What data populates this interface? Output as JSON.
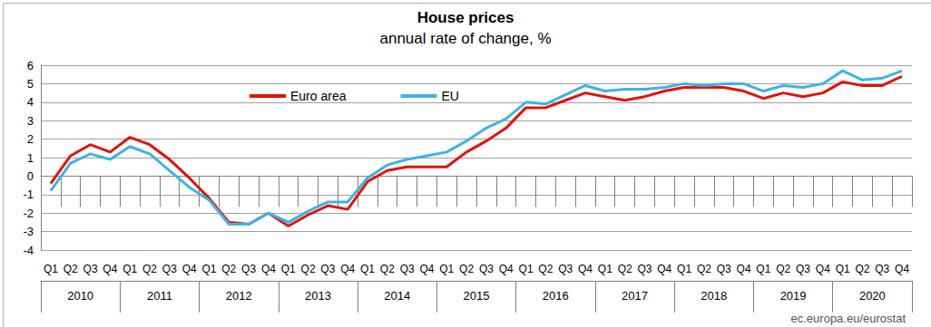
{
  "chart_data": {
    "type": "line",
    "title": "House prices",
    "subtitle": "annual rate of change, %",
    "annotations": [
      "ec.europa.eu/eurostat"
    ],
    "categories": [
      "Q1",
      "Q2",
      "Q3",
      "Q4",
      "Q1",
      "Q2",
      "Q3",
      "Q4",
      "Q1",
      "Q2",
      "Q3",
      "Q4",
      "Q1",
      "Q2",
      "Q3",
      "Q4",
      "Q1",
      "Q2",
      "Q3",
      "Q4",
      "Q1",
      "Q2",
      "Q3",
      "Q4",
      "Q1",
      "Q2",
      "Q3",
      "Q4",
      "Q1",
      "Q2",
      "Q3",
      "Q4",
      "Q1",
      "Q2",
      "Q3",
      "Q4",
      "Q1",
      "Q2",
      "Q3",
      "Q4",
      "Q1",
      "Q2",
      "Q3",
      "Q4"
    ],
    "years": [
      "2010",
      "2011",
      "2012",
      "2013",
      "2014",
      "2015",
      "2016",
      "2017",
      "2018",
      "2019",
      "2020"
    ],
    "series": [
      {
        "name": "Euro area",
        "color": "#e3120b",
        "values": [
          -0.4,
          1.1,
          1.7,
          1.3,
          2.1,
          1.7,
          0.9,
          -0.1,
          -1.2,
          -2.5,
          -2.6,
          -2.0,
          -2.7,
          -2.1,
          -1.6,
          -1.8,
          -0.3,
          0.3,
          0.5,
          0.5,
          0.5,
          1.3,
          1.9,
          2.6,
          3.7,
          3.7,
          4.1,
          4.5,
          4.3,
          4.1,
          4.3,
          4.6,
          4.8,
          4.8,
          4.8,
          4.6,
          4.2,
          4.5,
          4.3,
          4.5,
          5.1,
          4.9,
          4.9,
          5.4
        ]
      },
      {
        "name": "EU",
        "color": "#3cb4e5",
        "values": [
          -0.8,
          0.7,
          1.2,
          0.9,
          1.6,
          1.2,
          0.3,
          -0.6,
          -1.3,
          -2.6,
          -2.6,
          -2.0,
          -2.5,
          -1.9,
          -1.4,
          -1.4,
          -0.1,
          0.6,
          0.9,
          1.1,
          1.3,
          1.9,
          2.6,
          3.1,
          4.0,
          3.9,
          4.4,
          4.9,
          4.6,
          4.7,
          4.7,
          4.8,
          5.0,
          4.9,
          5.0,
          5.0,
          4.6,
          4.9,
          4.8,
          5.0,
          5.7,
          5.2,
          5.3,
          5.7
        ]
      }
    ],
    "ylim": [
      -4,
      6
    ],
    "yticks": [
      -4,
      -3,
      -2,
      -1,
      0,
      1,
      2,
      3,
      4,
      5,
      6
    ],
    "grid": true,
    "legend": "top-left"
  }
}
